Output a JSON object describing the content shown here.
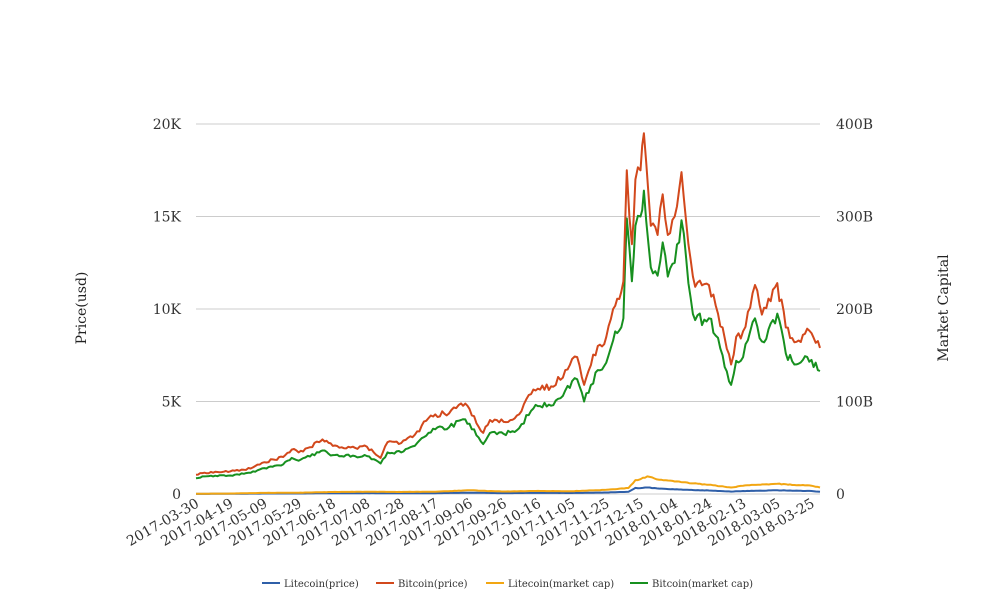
{
  "chart_data": {
    "type": "line",
    "title": "",
    "y_left": {
      "label": "Price(usd)",
      "min": 0,
      "max": 20000,
      "ticks": [
        0,
        5000,
        10000,
        15000,
        20000
      ],
      "tick_labels": [
        "0",
        "5K",
        "10K",
        "15K",
        "20K"
      ]
    },
    "y_right": {
      "label": "Market Capital",
      "min": 0,
      "max": 400,
      "ticks": [
        0,
        100,
        200,
        300,
        400
      ],
      "tick_labels": [
        "0",
        "100B",
        "200B",
        "300B",
        "400B"
      ]
    },
    "x": {
      "start": "2017-03-30",
      "end": "2018-03-30",
      "tick_labels": [
        "2017-03-30",
        "2017-04-19",
        "2017-05-09",
        "2017-05-29",
        "2017-06-18",
        "2017-07-08",
        "2017-07-28",
        "2017-08-17",
        "2017-09-06",
        "2017-09-26",
        "2017-10-16",
        "2017-11-05",
        "2017-11-25",
        "2017-12-15",
        "2018-01-04",
        "2018-01-24",
        "2018-02-13",
        "2018-03-05",
        "2018-03-25"
      ]
    },
    "grid": true,
    "legend_position": "bottom",
    "colors": {
      "litecoin_price": "#2f5fa8",
      "bitcoin_price": "#d2481c",
      "litecoin_cap": "#f2a612",
      "bitcoin_cap": "#17901f"
    },
    "series": [
      {
        "name": "Litecoin(price)",
        "axis": "left",
        "color": "#2f5fa8",
        "points": [
          [
            "2017-03-30",
            5
          ],
          [
            "2017-04-19",
            12
          ],
          [
            "2017-05-09",
            25
          ],
          [
            "2017-05-29",
            28
          ],
          [
            "2017-06-18",
            42
          ],
          [
            "2017-07-08",
            46
          ],
          [
            "2017-07-28",
            42
          ],
          [
            "2017-08-17",
            45
          ],
          [
            "2017-09-06",
            72
          ],
          [
            "2017-09-26",
            48
          ],
          [
            "2017-10-16",
            62
          ],
          [
            "2017-11-05",
            55
          ],
          [
            "2017-11-25",
            82
          ],
          [
            "2017-12-08",
            120
          ],
          [
            "2017-12-12",
            330
          ],
          [
            "2017-12-15",
            320
          ],
          [
            "2017-12-19",
            350
          ],
          [
            "2017-12-26",
            290
          ],
          [
            "2018-01-04",
            250
          ],
          [
            "2018-01-15",
            210
          ],
          [
            "2018-01-24",
            190
          ],
          [
            "2018-02-06",
            130
          ],
          [
            "2018-02-13",
            160
          ],
          [
            "2018-03-05",
            200
          ],
          [
            "2018-03-25",
            160
          ],
          [
            "2018-03-30",
            120
          ]
        ]
      },
      {
        "name": "Bitcoin(price)",
        "axis": "left",
        "color": "#d2481c",
        "points": [
          [
            "2017-03-30",
            1040
          ],
          [
            "2017-04-04",
            1150
          ],
          [
            "2017-04-19",
            1220
          ],
          [
            "2017-05-01",
            1380
          ],
          [
            "2017-05-09",
            1720
          ],
          [
            "2017-05-20",
            2000
          ],
          [
            "2017-05-25",
            2400
          ],
          [
            "2017-05-29",
            2250
          ],
          [
            "2017-06-10",
            2800
          ],
          [
            "2017-06-12",
            2950
          ],
          [
            "2017-06-18",
            2600
          ],
          [
            "2017-07-01",
            2500
          ],
          [
            "2017-07-08",
            2550
          ],
          [
            "2017-07-16",
            1950
          ],
          [
            "2017-07-20",
            2800
          ],
          [
            "2017-07-28",
            2750
          ],
          [
            "2017-08-05",
            3200
          ],
          [
            "2017-08-13",
            4100
          ],
          [
            "2017-08-17",
            4300
          ],
          [
            "2017-08-25",
            4350
          ],
          [
            "2017-09-01",
            4900
          ],
          [
            "2017-09-06",
            4600
          ],
          [
            "2017-09-14",
            3300
          ],
          [
            "2017-09-18",
            4000
          ],
          [
            "2017-09-26",
            3900
          ],
          [
            "2017-10-05",
            4300
          ],
          [
            "2017-10-12",
            5400
          ],
          [
            "2017-10-16",
            5700
          ],
          [
            "2017-10-25",
            5800
          ],
          [
            "2017-11-01",
            6700
          ],
          [
            "2017-11-05",
            7300
          ],
          [
            "2017-11-08",
            7400
          ],
          [
            "2017-11-12",
            5900
          ],
          [
            "2017-11-20",
            8000
          ],
          [
            "2017-11-25",
            8500
          ],
          [
            "2017-11-29",
            10000
          ],
          [
            "2017-12-05",
            11500
          ],
          [
            "2017-12-07",
            17500
          ],
          [
            "2017-12-10",
            13500
          ],
          [
            "2017-12-12",
            17000
          ],
          [
            "2017-12-15",
            17500
          ],
          [
            "2017-12-17",
            19500
          ],
          [
            "2017-12-21",
            14500
          ],
          [
            "2017-12-25",
            14000
          ],
          [
            "2017-12-28",
            16200
          ],
          [
            "2017-12-31",
            14000
          ],
          [
            "2018-01-04",
            15000
          ],
          [
            "2018-01-08",
            17400
          ],
          [
            "2018-01-12",
            13500
          ],
          [
            "2018-01-16",
            11200
          ],
          [
            "2018-01-24",
            11300
          ],
          [
            "2018-02-01",
            9000
          ],
          [
            "2018-02-06",
            7000
          ],
          [
            "2018-02-09",
            8500
          ],
          [
            "2018-02-13",
            8800
          ],
          [
            "2018-02-20",
            11300
          ],
          [
            "2018-02-24",
            9700
          ],
          [
            "2018-03-05",
            11400
          ],
          [
            "2018-03-10",
            9000
          ],
          [
            "2018-03-15",
            8200
          ],
          [
            "2018-03-20",
            8600
          ],
          [
            "2018-03-25",
            8700
          ],
          [
            "2018-03-30",
            7900
          ]
        ]
      },
      {
        "name": "Litecoin(market cap)",
        "axis": "right",
        "color": "#f2a612",
        "points": [
          [
            "2017-03-30",
            0.3
          ],
          [
            "2017-04-19",
            0.5
          ],
          [
            "2017-05-09",
            1.2
          ],
          [
            "2017-05-29",
            1.4
          ],
          [
            "2017-06-18",
            2.2
          ],
          [
            "2017-07-08",
            2.4
          ],
          [
            "2017-07-28",
            2.2
          ],
          [
            "2017-08-17",
            2.5
          ],
          [
            "2017-09-06",
            4.0
          ],
          [
            "2017-09-26",
            2.7
          ],
          [
            "2017-10-16",
            3.3
          ],
          [
            "2017-11-05",
            3.0
          ],
          [
            "2017-11-25",
            4.5
          ],
          [
            "2017-12-08",
            6.5
          ],
          [
            "2017-12-12",
            15.0
          ],
          [
            "2017-12-15",
            16.0
          ],
          [
            "2017-12-19",
            19.0
          ],
          [
            "2017-12-26",
            15.5
          ],
          [
            "2018-01-04",
            13.5
          ],
          [
            "2018-01-15",
            11.5
          ],
          [
            "2018-01-24",
            10.0
          ],
          [
            "2018-02-06",
            7.0
          ],
          [
            "2018-02-13",
            9.0
          ],
          [
            "2018-03-05",
            11.0
          ],
          [
            "2018-03-25",
            9.0
          ],
          [
            "2018-03-30",
            7.0
          ]
        ]
      },
      {
        "name": "Bitcoin(market cap)",
        "axis": "right",
        "color": "#17901f",
        "points": [
          [
            "2017-03-30",
            17
          ],
          [
            "2017-04-04",
            19
          ],
          [
            "2017-04-19",
            20
          ],
          [
            "2017-05-01",
            23
          ],
          [
            "2017-05-09",
            28
          ],
          [
            "2017-05-20",
            32
          ],
          [
            "2017-05-25",
            39
          ],
          [
            "2017-05-29",
            36
          ],
          [
            "2017-06-10",
            45
          ],
          [
            "2017-06-12",
            47
          ],
          [
            "2017-06-18",
            42
          ],
          [
            "2017-07-01",
            41
          ],
          [
            "2017-07-08",
            41
          ],
          [
            "2017-07-16",
            33
          ],
          [
            "2017-07-20",
            45
          ],
          [
            "2017-07-28",
            45
          ],
          [
            "2017-08-05",
            52
          ],
          [
            "2017-08-13",
            66
          ],
          [
            "2017-08-17",
            70
          ],
          [
            "2017-08-25",
            72
          ],
          [
            "2017-09-01",
            80
          ],
          [
            "2017-09-06",
            76
          ],
          [
            "2017-09-14",
            54
          ],
          [
            "2017-09-18",
            66
          ],
          [
            "2017-09-26",
            65
          ],
          [
            "2017-10-05",
            71
          ],
          [
            "2017-10-12",
            90
          ],
          [
            "2017-10-16",
            95
          ],
          [
            "2017-10-25",
            96
          ],
          [
            "2017-11-01",
            112
          ],
          [
            "2017-11-05",
            122
          ],
          [
            "2017-11-08",
            124
          ],
          [
            "2017-11-12",
            100
          ],
          [
            "2017-11-20",
            134
          ],
          [
            "2017-11-25",
            142
          ],
          [
            "2017-11-29",
            166
          ],
          [
            "2017-12-05",
            190
          ],
          [
            "2017-12-07",
            298
          ],
          [
            "2017-12-10",
            230
          ],
          [
            "2017-12-12",
            290
          ],
          [
            "2017-12-15",
            300
          ],
          [
            "2017-12-17",
            328
          ],
          [
            "2017-12-21",
            245
          ],
          [
            "2017-12-25",
            236
          ],
          [
            "2017-12-28",
            272
          ],
          [
            "2017-12-31",
            235
          ],
          [
            "2018-01-04",
            250
          ],
          [
            "2018-01-08",
            296
          ],
          [
            "2018-01-12",
            228
          ],
          [
            "2018-01-16",
            188
          ],
          [
            "2018-01-24",
            190
          ],
          [
            "2018-02-01",
            150
          ],
          [
            "2018-02-06",
            118
          ],
          [
            "2018-02-09",
            144
          ],
          [
            "2018-02-13",
            148
          ],
          [
            "2018-02-20",
            190
          ],
          [
            "2018-02-24",
            165
          ],
          [
            "2018-03-05",
            195
          ],
          [
            "2018-03-10",
            152
          ],
          [
            "2018-03-15",
            140
          ],
          [
            "2018-03-20",
            145
          ],
          [
            "2018-03-25",
            145
          ],
          [
            "2018-03-30",
            133
          ]
        ]
      }
    ]
  }
}
